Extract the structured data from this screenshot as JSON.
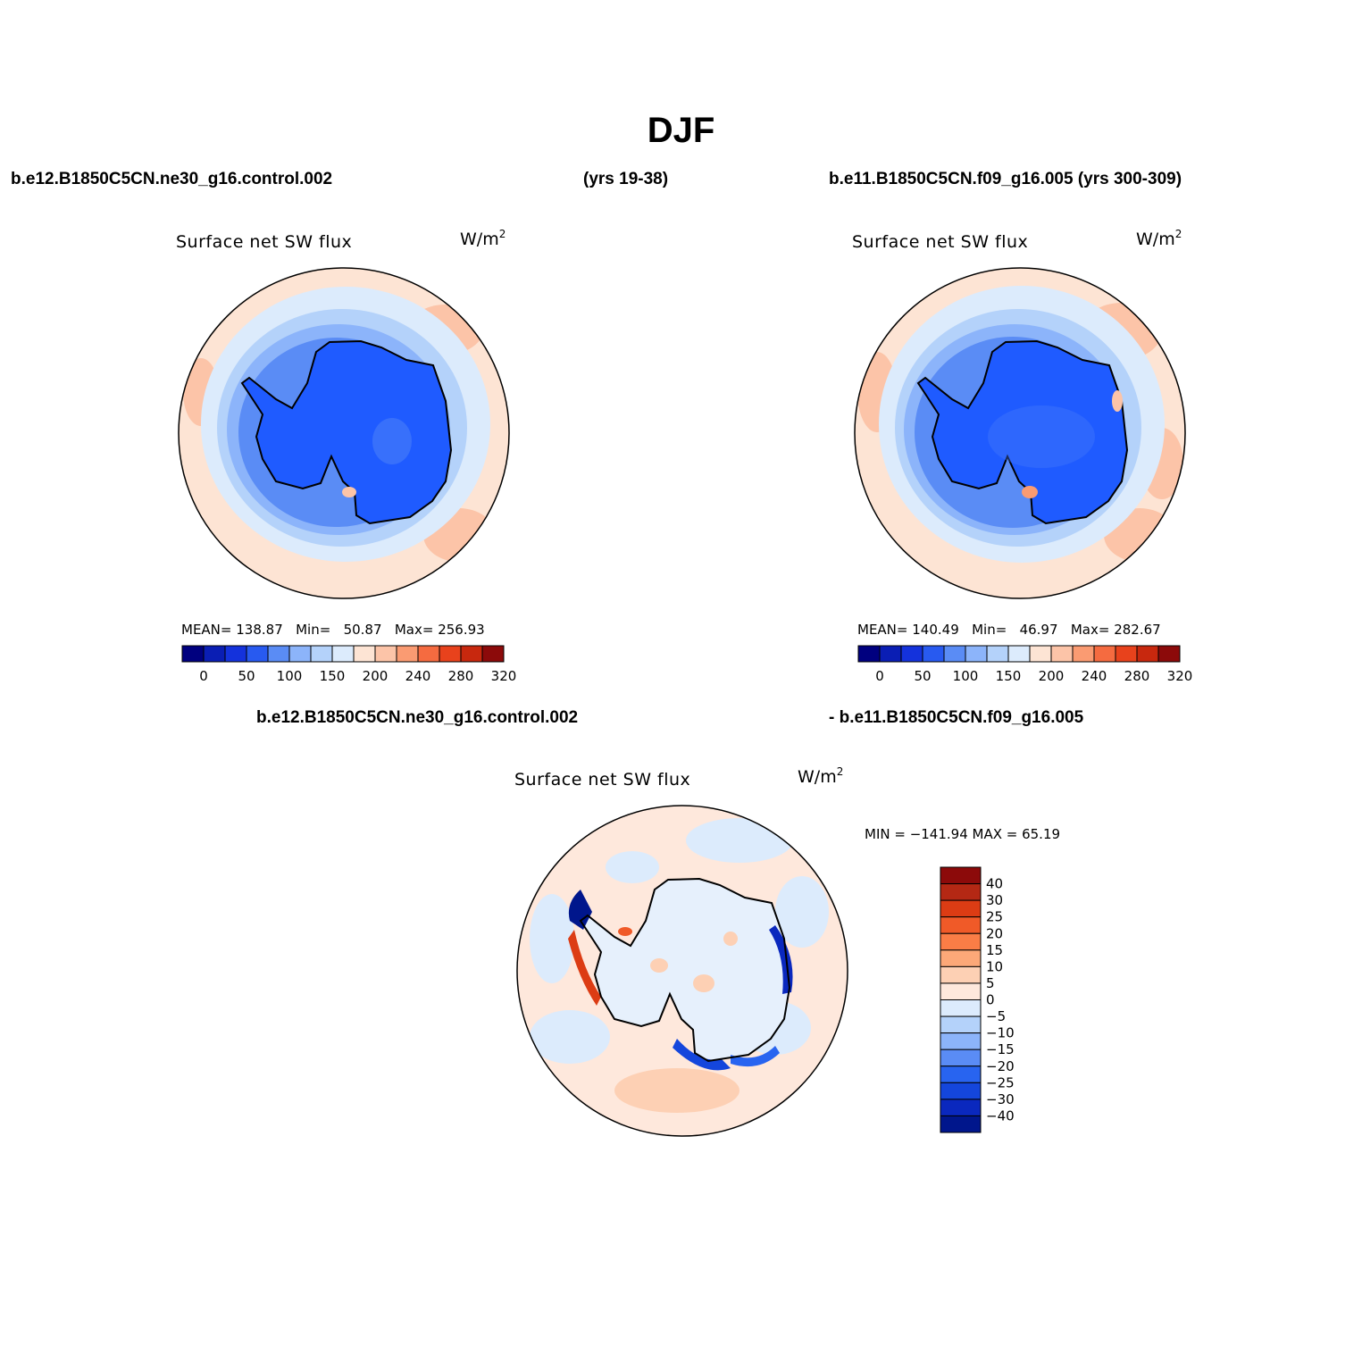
{
  "title": "DJF",
  "header": {
    "left_case": "b.e12.B1850C5CN.ne30_g16.control.002",
    "left_years": "(yrs 19-38)",
    "right_case": "b.e11.B1850C5CN.f09_g16.005 (yrs 300-309)"
  },
  "panels": [
    {
      "id": "left",
      "variable": "Surface net SW flux",
      "units": "W/m",
      "units_exp": "2",
      "stats": {
        "mean_label": "MEAN=",
        "mean": "138.87",
        "min_label": "Min=",
        "min": "50.87",
        "max_label": "Max=",
        "max": "256.93"
      }
    },
    {
      "id": "right",
      "variable": "Surface net SW flux",
      "units": "W/m",
      "units_exp": "2",
      "stats": {
        "mean_label": "MEAN=",
        "mean": "140.49",
        "min_label": "Min=",
        "min": "46.97",
        "max_label": "Max=",
        "max": "282.67"
      }
    }
  ],
  "diff": {
    "title_left": "b.e12.B1850C5CN.ne30_g16.control.002",
    "title_right": "- b.e11.B1850C5CN.f09_g16.005",
    "variable": "Surface net SW flux",
    "units": "W/m",
    "units_exp": "2",
    "minmax": "MIN = −141.94 MAX =   65.19"
  },
  "horizontal_colorbar": {
    "colors": [
      "#00007f",
      "#0a1eb4",
      "#1432dc",
      "#285af0",
      "#5a8cf5",
      "#8cb4fa",
      "#b4d2fa",
      "#dcebfc",
      "#fde4d4",
      "#fcc4a8",
      "#fa9b72",
      "#f56b40",
      "#e8421c",
      "#c8280e",
      "#8c0a0a"
    ],
    "labels": [
      "0",
      "50",
      "100",
      "150",
      "200",
      "240",
      "280",
      "320"
    ]
  },
  "vertical_colorbar": {
    "colors_top_to_bottom": [
      "#8c0a0a",
      "#b42814",
      "#dc3c14",
      "#f05a28",
      "#fa7d46",
      "#fca878",
      "#fdd0b4",
      "#fee8dc",
      "#dcebfc",
      "#b4d2fa",
      "#8cb4fa",
      "#5a8cf5",
      "#2864f0",
      "#1446dc",
      "#0a28be",
      "#00168c"
    ],
    "labels": [
      "40",
      "30",
      "25",
      "20",
      "15",
      "10",
      "5",
      "0",
      "−5",
      "−10",
      "−15",
      "−20",
      "−25",
      "−30",
      "−40"
    ]
  }
}
